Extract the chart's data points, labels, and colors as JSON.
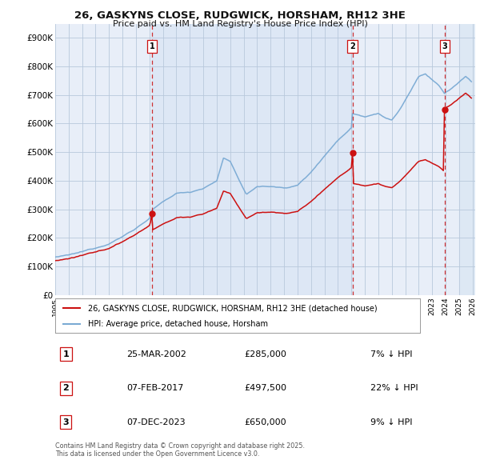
{
  "title": "26, GASKYNS CLOSE, RUDGWICK, HORSHAM, RH12 3HE",
  "subtitle": "Price paid vs. HM Land Registry's House Price Index (HPI)",
  "hpi_label": "HPI: Average price, detached house, Horsham",
  "price_label": "26, GASKYNS CLOSE, RUDGWICK, HORSHAM, RH12 3HE (detached house)",
  "hpi_color": "#7aaad4",
  "price_color": "#cc1111",
  "dashed_color": "#cc1111",
  "bg_color": "#ffffff",
  "plot_bg": "#e8eef8",
  "fill_bg": "#d0ddf0",
  "grid_color": "#b8c8dc",
  "ylim": [
    0,
    950000
  ],
  "yticks": [
    0,
    100000,
    200000,
    300000,
    400000,
    500000,
    600000,
    700000,
    800000,
    900000
  ],
  "ytick_labels": [
    "£0",
    "£100K",
    "£200K",
    "£300K",
    "£400K",
    "£500K",
    "£600K",
    "£700K",
    "£800K",
    "£900K"
  ],
  "sale1": {
    "year": 2002.2,
    "price": 285000,
    "label": "1",
    "date": "25-MAR-2002",
    "pct": "7%"
  },
  "sale2": {
    "year": 2017.08,
    "price": 497500,
    "label": "2",
    "date": "07-FEB-2017",
    "pct": "22%"
  },
  "sale3": {
    "year": 2023.92,
    "price": 650000,
    "label": "3",
    "date": "07-DEC-2023",
    "pct": "9%"
  },
  "footnote": "Contains HM Land Registry data © Crown copyright and database right 2025.\nThis data is licensed under the Open Government Licence v3.0."
}
